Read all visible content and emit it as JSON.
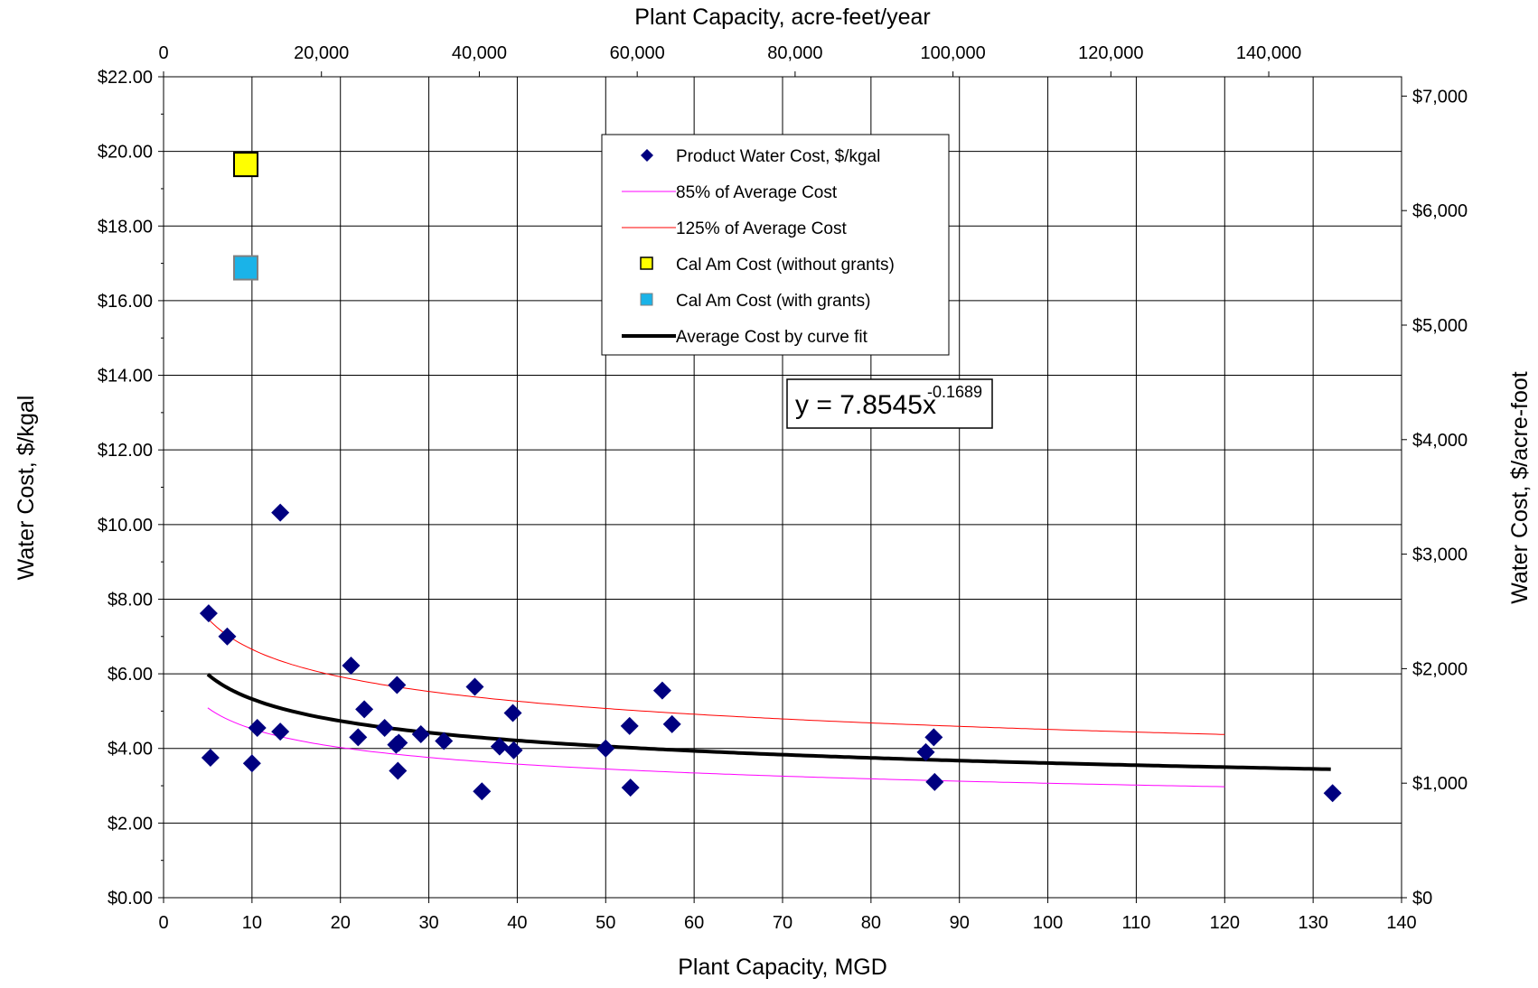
{
  "chart_data": {
    "type": "scatter",
    "x_axis": {
      "label": "Plant Capacity, MGD",
      "range": [
        0,
        140
      ],
      "ticks": [
        0,
        10,
        20,
        30,
        40,
        50,
        60,
        70,
        80,
        90,
        100,
        110,
        120,
        130,
        140
      ]
    },
    "y_axis_left": {
      "label": "Water Cost, $/kgal",
      "range": [
        0,
        22
      ],
      "ticks": [
        "$0.00",
        "$2.00",
        "$4.00",
        "$6.00",
        "$8.00",
        "$10.00",
        "$12.00",
        "$14.00",
        "$16.00",
        "$18.00",
        "$20.00",
        "$22.00"
      ]
    },
    "x_axis_top": {
      "label": "Plant Capacity, acre-feet/year",
      "ticks": [
        "0",
        "20,000",
        "40,000",
        "60,000",
        "80,000",
        "100,000",
        "120,000",
        "140,000"
      ]
    },
    "y_axis_right": {
      "label": "Water Cost, $/acre-foot",
      "ticks": [
        "$0",
        "$1,000",
        "$2,000",
        "$3,000",
        "$4,000",
        "$5,000",
        "$6,000",
        "$7,000"
      ]
    },
    "grid": true,
    "legend_position": "top-center",
    "equation": {
      "base": "y = 7.8545x",
      "exponent": "-0.1689"
    },
    "series": [
      {
        "name": "Product Water Cost, $/kgal",
        "marker": "diamond",
        "color": "#000080",
        "points": [
          [
            5.1,
            7.62
          ],
          [
            5.3,
            3.75
          ],
          [
            7.2,
            7.0
          ],
          [
            10.0,
            3.6
          ],
          [
            10.6,
            4.55
          ],
          [
            13.2,
            4.45
          ],
          [
            13.2,
            10.32
          ],
          [
            21.2,
            6.22
          ],
          [
            22.0,
            4.3
          ],
          [
            22.7,
            5.05
          ],
          [
            25.0,
            4.55
          ],
          [
            26.3,
            4.1
          ],
          [
            26.4,
            5.7
          ],
          [
            26.5,
            3.4
          ],
          [
            26.6,
            4.15
          ],
          [
            29.1,
            4.38
          ],
          [
            31.7,
            4.2
          ],
          [
            35.2,
            5.65
          ],
          [
            36.0,
            2.85
          ],
          [
            38.0,
            4.05
          ],
          [
            39.5,
            4.95
          ],
          [
            39.6,
            3.95
          ],
          [
            50.0,
            4.0
          ],
          [
            52.7,
            4.6
          ],
          [
            52.8,
            2.95
          ],
          [
            56.4,
            5.55
          ],
          [
            57.5,
            4.65
          ],
          [
            86.2,
            3.9
          ],
          [
            87.1,
            4.3
          ],
          [
            87.2,
            3.1
          ],
          [
            132.2,
            2.8
          ]
        ]
      },
      {
        "name": "85% of Average Cost",
        "color": "#ff00ff",
        "x_range": [
          5,
          120
        ],
        "coef": 6.6763,
        "exp": -0.1689
      },
      {
        "name": "125% of Average Cost",
        "color": "#ff0000",
        "x_range": [
          5,
          120
        ],
        "coef": 9.8181,
        "exp": -0.1689
      },
      {
        "name": "Cal Am Cost (without grants)",
        "marker": "square",
        "color": "#ffff00",
        "points": [
          [
            9.3,
            19.65
          ]
        ]
      },
      {
        "name": "Cal Am Cost (with grants)",
        "marker": "square",
        "color": "#1ab3e8",
        "points": [
          [
            9.3,
            16.88
          ]
        ]
      },
      {
        "name": "Average Cost by curve fit",
        "color": "#000000",
        "x_range": [
          5,
          132
        ],
        "coef": 7.8545,
        "exp": -0.1689
      }
    ]
  }
}
